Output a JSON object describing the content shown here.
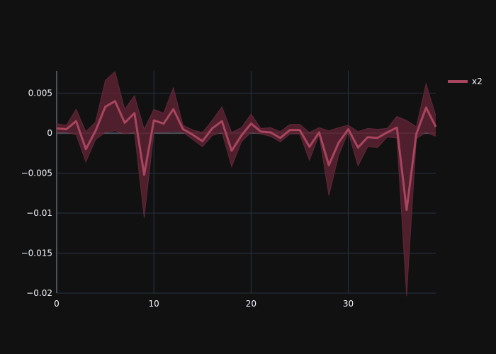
{
  "chart_data": {
    "type": "line",
    "title": "",
    "xlabel": "",
    "ylabel": "",
    "xlim": [
      0,
      39
    ],
    "ylim": [
      -0.02,
      0.0078
    ],
    "x_ticks": [
      0,
      10,
      20,
      30
    ],
    "x_tick_labels": [
      "0",
      "10",
      "20",
      "30"
    ],
    "y_ticks": [
      0.005,
      0,
      -0.005,
      -0.01,
      -0.015,
      -0.02
    ],
    "y_tick_labels": [
      "0.005",
      "0",
      "−0.005",
      "−0.01",
      "−0.015",
      "−0.02"
    ],
    "grid": true,
    "legend_position": "top-right",
    "series": [
      {
        "name": "x2",
        "color": "#a8455f",
        "band_color": "#5c2233",
        "x": [
          0,
          1,
          2,
          3,
          4,
          5,
          6,
          7,
          8,
          9,
          10,
          11,
          12,
          13,
          14,
          15,
          16,
          17,
          18,
          19,
          20,
          21,
          22,
          23,
          24,
          25,
          26,
          27,
          28,
          29,
          30,
          31,
          32,
          33,
          34,
          35,
          36,
          37,
          38,
          39
        ],
        "y": [
          0.0006,
          0.0005,
          0.0015,
          -0.002,
          0.0003,
          0.0033,
          0.004,
          0.0013,
          0.0025,
          -0.0052,
          0.0016,
          0.0012,
          0.003,
          0.0005,
          -0.0002,
          -0.001,
          0.0006,
          0.0015,
          -0.0022,
          -0.0003,
          0.0012,
          0.0002,
          0.0001,
          -0.0006,
          0.0004,
          0.0004,
          -0.0017,
          0.0001,
          -0.004,
          -0.0012,
          0.0005,
          -0.0018,
          -0.0005,
          -0.0006,
          0.0001,
          0.0007,
          -0.0096,
          -0.0001,
          0.0032,
          0.0008
        ],
        "upper": [
          0.0012,
          0.001,
          0.003,
          0.0002,
          0.0014,
          0.0066,
          0.0077,
          0.003,
          0.0047,
          0.0005,
          0.003,
          0.0025,
          0.0057,
          0.001,
          0.0004,
          0.0001,
          0.0016,
          0.0033,
          0.0001,
          0.0007,
          0.0024,
          0.0006,
          0.0007,
          0.0002,
          0.0011,
          0.0011,
          0.0001,
          0.0007,
          0.0003,
          0.0007,
          0.001,
          0.0002,
          0.0006,
          0.0005,
          0.0006,
          0.0021,
          0.0016,
          0.0008,
          0.0062,
          0.0022
        ],
        "lower": [
          0.0001,
          0.0001,
          -0.0002,
          -0.0036,
          -0.0008,
          0.0001,
          0.0003,
          -0.0001,
          0.0001,
          -0.0106,
          0.0001,
          0.0001,
          0.0002,
          0.0001,
          -0.0008,
          -0.0017,
          -0.0003,
          0.0001,
          -0.0042,
          -0.0011,
          0.0001,
          -0.0001,
          -0.0004,
          -0.0011,
          -0.0001,
          -0.0001,
          -0.0034,
          -0.0002,
          -0.0078,
          -0.0028,
          0.0001,
          -0.0041,
          -0.0017,
          -0.0018,
          -0.0005,
          -0.0006,
          -0.0204,
          -0.0007,
          0.0001,
          -0.0004
        ]
      }
    ]
  }
}
